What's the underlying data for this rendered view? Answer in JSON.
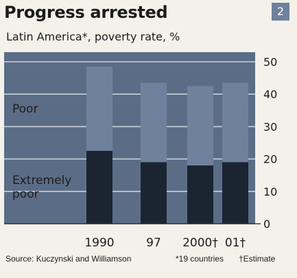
{
  "header": {
    "title": "Progress arrested",
    "badge": "2",
    "subtitle": "Latin America*, poverty rate, %"
  },
  "colors": {
    "background": "#f3f1ea",
    "plot_background": "#5b6d86",
    "poor_bar": "#6f819d",
    "extremely_poor_bar": "#1a2531",
    "badge": "#6f819d"
  },
  "chart_data": {
    "type": "bar",
    "stacked": true,
    "categories": [
      "1990",
      "97",
      "2000†",
      "01†"
    ],
    "series": [
      {
        "name": "Extremely poor",
        "values": [
          22.5,
          19,
          18,
          19
        ]
      },
      {
        "name": "Poor",
        "values": [
          26,
          24.5,
          24.5,
          24.5
        ]
      }
    ],
    "totals": [
      48.5,
      43.5,
      42.5,
      43.5
    ],
    "ylim": [
      0,
      50
    ],
    "yticks": [
      "0",
      "10",
      "20",
      "30",
      "40",
      "50"
    ],
    "yaxis_position": "right",
    "grid": true,
    "legend": "inline-left"
  },
  "legend_labels": {
    "poor": "Poor",
    "extremely_poor_line1": "Extremely",
    "extremely_poor_line2": "poor"
  },
  "footer": {
    "source": "Source: Kuczynski and Williamson",
    "note_countries": "*19 countries",
    "note_estimate": "†Estimate"
  }
}
